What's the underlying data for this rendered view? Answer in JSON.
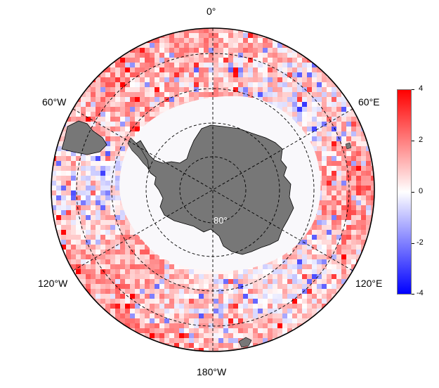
{
  "map": {
    "projection": "south-polar-stereographic",
    "longitude_labels": {
      "top": "0°",
      "upper_left": "60°W",
      "upper_right": "60°E",
      "lower_left": "120°W",
      "lower_right": "120°E",
      "bottom": "180°W"
    },
    "latitude_label": "80°",
    "land_color": "#777777",
    "ice_region_color": "#f9f8fb"
  },
  "colorbar": {
    "min": -4,
    "max": 4,
    "tick_labels": [
      "4",
      "2",
      "0",
      "-2",
      "-4"
    ],
    "colors": {
      "high": "#ff0000",
      "mid": "#ffffff",
      "low": "#0000ff"
    }
  }
}
